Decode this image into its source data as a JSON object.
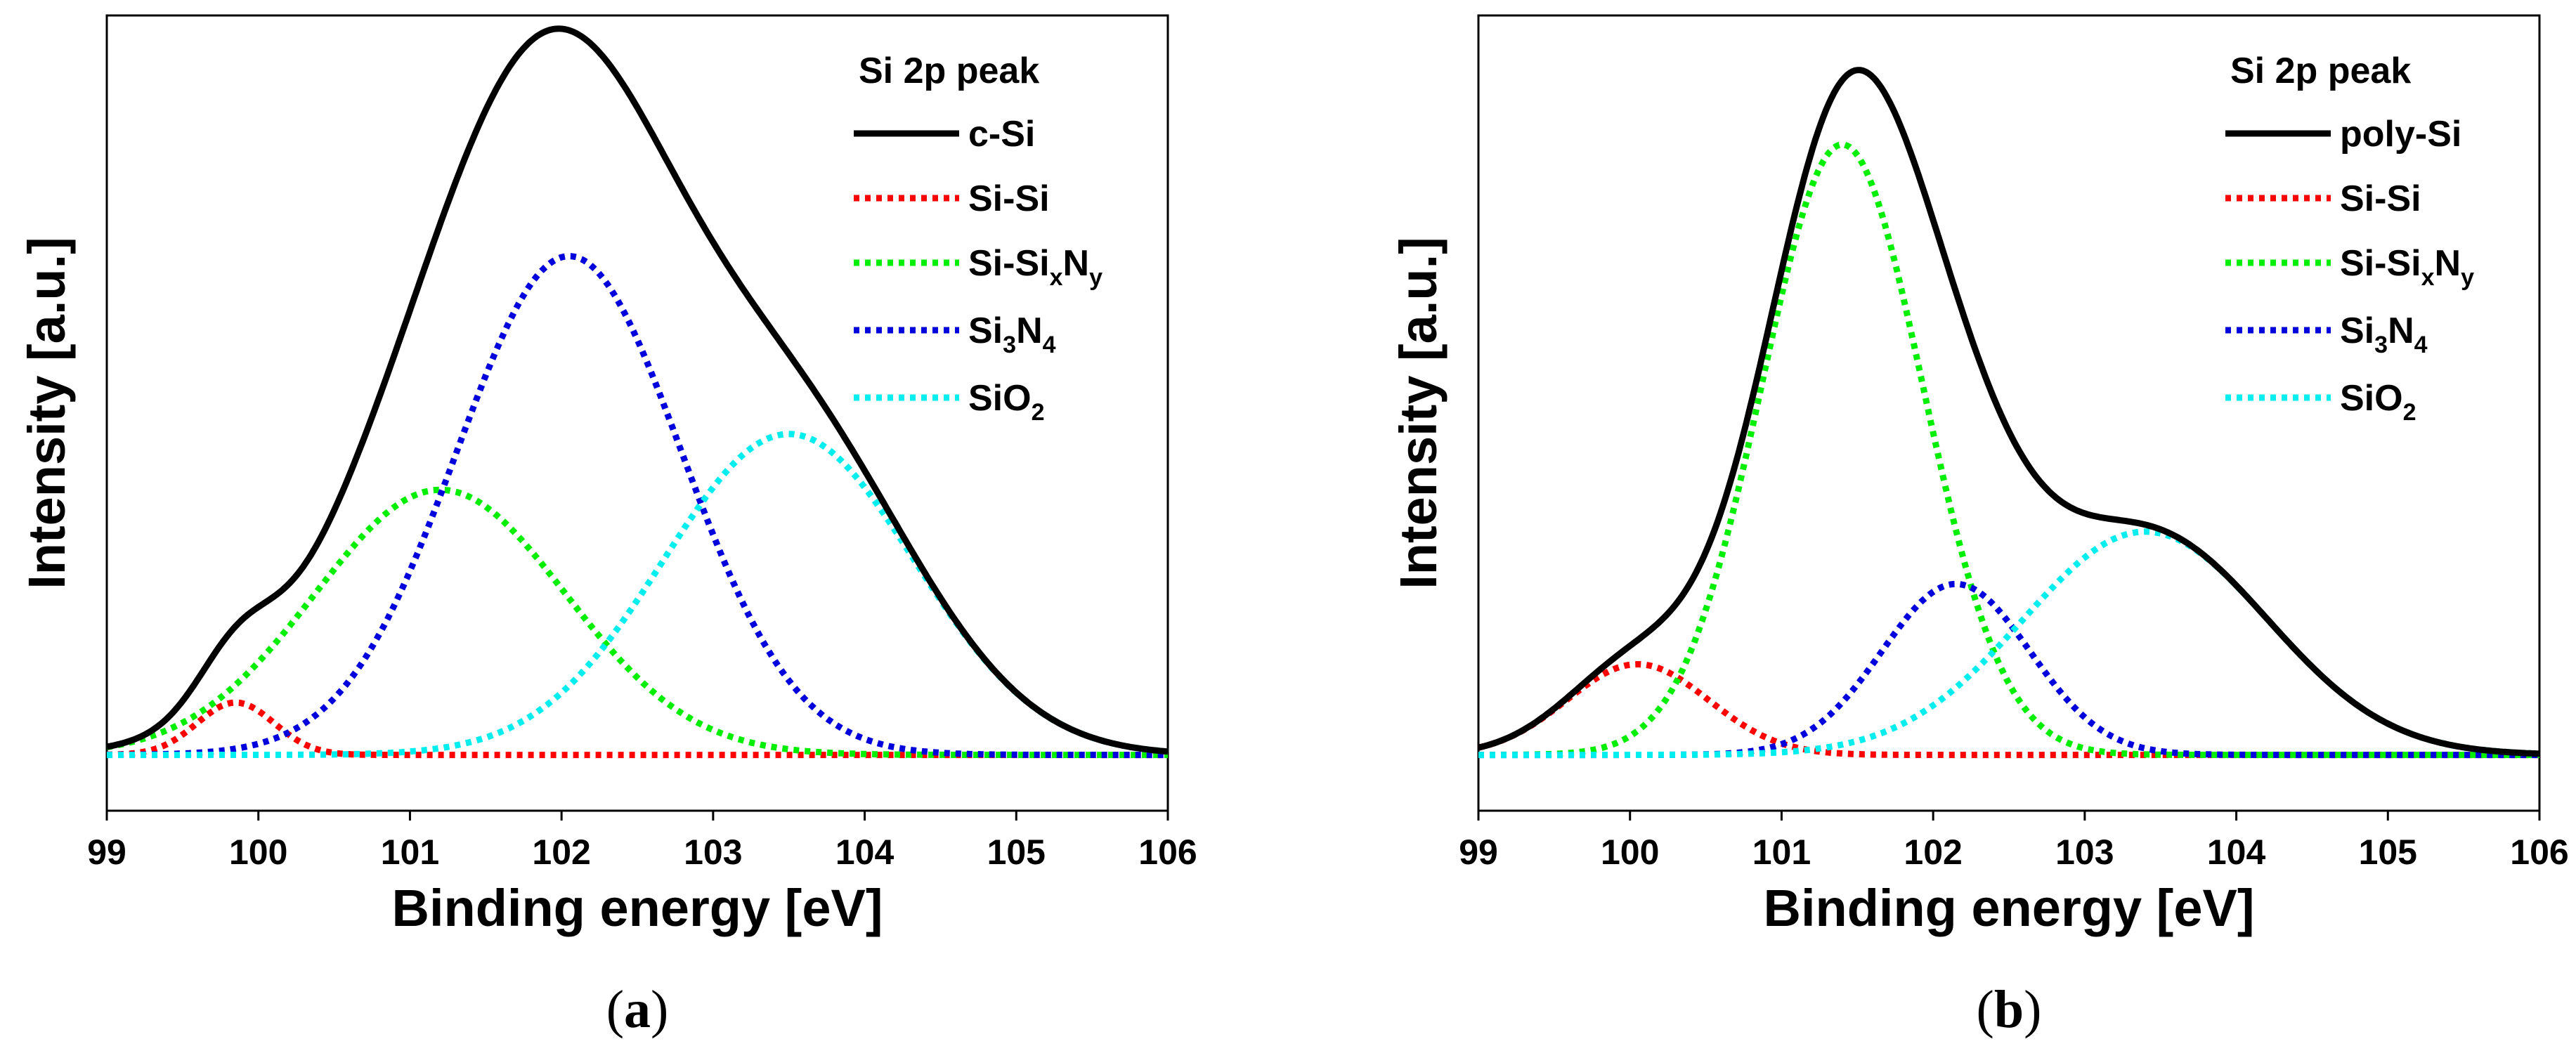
{
  "chart_data": [
    {
      "type": "line",
      "panel_label": "a",
      "xlabel": "Binding energy [eV]",
      "ylabel": "Intensity [a.u.]",
      "xlim": [
        99,
        106
      ],
      "x_ticks": [
        "99",
        "100",
        "101",
        "102",
        "103",
        "104",
        "105",
        "106"
      ],
      "y_ticks_labeled": false,
      "legend_title": "Si 2p peak",
      "legend_position": "top-right",
      "colors": {
        "total": "#000000",
        "si_si": "#ff0000",
        "si_sixny": "#00ee00",
        "si3n4": "#0000dd",
        "sio2": "#00eeee"
      },
      "series": [
        {
          "name": "c-Si",
          "legend_text": "c-Si",
          "style": "solid",
          "color": "#000000"
        },
        {
          "name": "Si-Si",
          "legend_text": "Si-Si",
          "style": "dotted",
          "color": "#ff0000",
          "peak": {
            "center": 99.85,
            "height": 0.075,
            "fwhm": 0.6
          }
        },
        {
          "name": "Si-SixNy",
          "legend_base": "Si-Si",
          "legend_sub1": "x",
          "legend_mid": "N",
          "legend_sub2": "y",
          "style": "dotted",
          "color": "#00ee00",
          "peak": {
            "center": 101.2,
            "height": 0.38,
            "fwhm": 1.95
          }
        },
        {
          "name": "Si3N4",
          "legend_base": "Si",
          "legend_sub1": "3",
          "legend_mid": "N",
          "legend_sub2": "4",
          "style": "dotted",
          "color": "#0000dd",
          "peak": {
            "center": 102.05,
            "height": 0.715,
            "fwhm": 1.75
          }
        },
        {
          "name": "SiO2",
          "legend_base": "SiO",
          "legend_sub1": "2",
          "style": "dotted",
          "color": "#00eeee",
          "peak": {
            "center": 103.5,
            "height": 0.46,
            "fwhm": 1.95
          }
        }
      ],
      "ylim": [
        -0.08,
        1.06
      ]
    },
    {
      "type": "line",
      "panel_label": "b",
      "xlabel": "Binding energy [eV]",
      "ylabel": "Intensity [a.u.]",
      "xlim": [
        99,
        106
      ],
      "x_ticks": [
        "99",
        "100",
        "101",
        "102",
        "103",
        "104",
        "105",
        "106"
      ],
      "y_ticks_labeled": false,
      "legend_title": "Si 2p peak",
      "legend_position": "top-right",
      "colors": {
        "total": "#000000",
        "si_si": "#ff0000",
        "si_sixny": "#00ee00",
        "si3n4": "#0000dd",
        "sio2": "#00eeee"
      },
      "series": [
        {
          "name": "poly-Si",
          "legend_text": "poly-Si",
          "style": "solid",
          "color": "#000000"
        },
        {
          "name": "Si-Si",
          "legend_text": "Si-Si",
          "style": "dotted",
          "color": "#ff0000",
          "peak": {
            "center": 100.05,
            "height": 0.13,
            "fwhm": 1.1
          }
        },
        {
          "name": "Si-SixNy",
          "legend_base": "Si-Si",
          "legend_sub1": "x",
          "legend_mid": "N",
          "legend_sub2": "y",
          "style": "dotted",
          "color": "#00ee00",
          "peak": {
            "center": 101.4,
            "height": 0.875,
            "fwhm": 1.25
          }
        },
        {
          "name": "Si3N4",
          "legend_base": "Si",
          "legend_sub1": "3",
          "legend_mid": "N",
          "legend_sub2": "4",
          "style": "dotted",
          "color": "#0000dd",
          "peak": {
            "center": 102.15,
            "height": 0.245,
            "fwhm": 1.15
          }
        },
        {
          "name": "SiO2",
          "legend_base": "SiO",
          "legend_sub1": "2",
          "style": "dotted",
          "color": "#00eeee",
          "peak": {
            "center": 103.4,
            "height": 0.32,
            "fwhm": 1.9
          }
        }
      ],
      "ylim": [
        -0.08,
        1.06
      ]
    }
  ]
}
